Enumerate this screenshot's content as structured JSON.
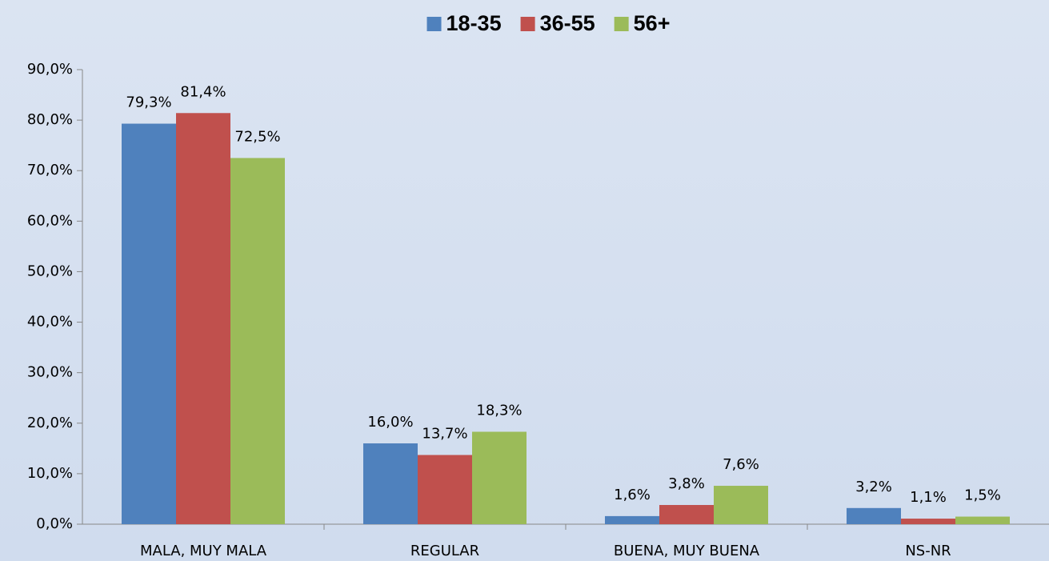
{
  "chart_data": {
    "type": "bar",
    "categories": [
      "MALA, MUY MALA",
      "REGULAR",
      "BUENA, MUY BUENA",
      "NS-NR"
    ],
    "series": [
      {
        "name": "18-35",
        "color": "#4f81bd",
        "values": [
          79.3,
          16.0,
          1.6,
          3.2
        ],
        "value_labels": [
          "79,3%",
          "16,0%",
          "1,6%",
          "3,2%"
        ]
      },
      {
        "name": "36-55",
        "color": "#c0504d",
        "values": [
          81.4,
          13.7,
          3.8,
          1.1
        ],
        "value_labels": [
          "81,4%",
          "13,7%",
          "3,8%",
          "1,1%"
        ]
      },
      {
        "name": "56+",
        "color": "#9bbb59",
        "values": [
          72.5,
          18.3,
          7.6,
          1.5
        ],
        "value_labels": [
          "72,5%",
          "18,3%",
          "7,6%",
          "1,5%"
        ]
      }
    ],
    "ylim": [
      0,
      90
    ],
    "yticks": [
      {
        "value": 0,
        "label": "0,0%"
      },
      {
        "value": 10,
        "label": "10,0%"
      },
      {
        "value": 20,
        "label": "20,0%"
      },
      {
        "value": 30,
        "label": "30,0%"
      },
      {
        "value": 40,
        "label": "40,0%"
      },
      {
        "value": 50,
        "label": "50,0%"
      },
      {
        "value": 60,
        "label": "60,0%"
      },
      {
        "value": 70,
        "label": "70,0%"
      },
      {
        "value": 80,
        "label": "80,0%"
      },
      {
        "value": 90,
        "label": "90,0%"
      }
    ],
    "legend": "top"
  }
}
